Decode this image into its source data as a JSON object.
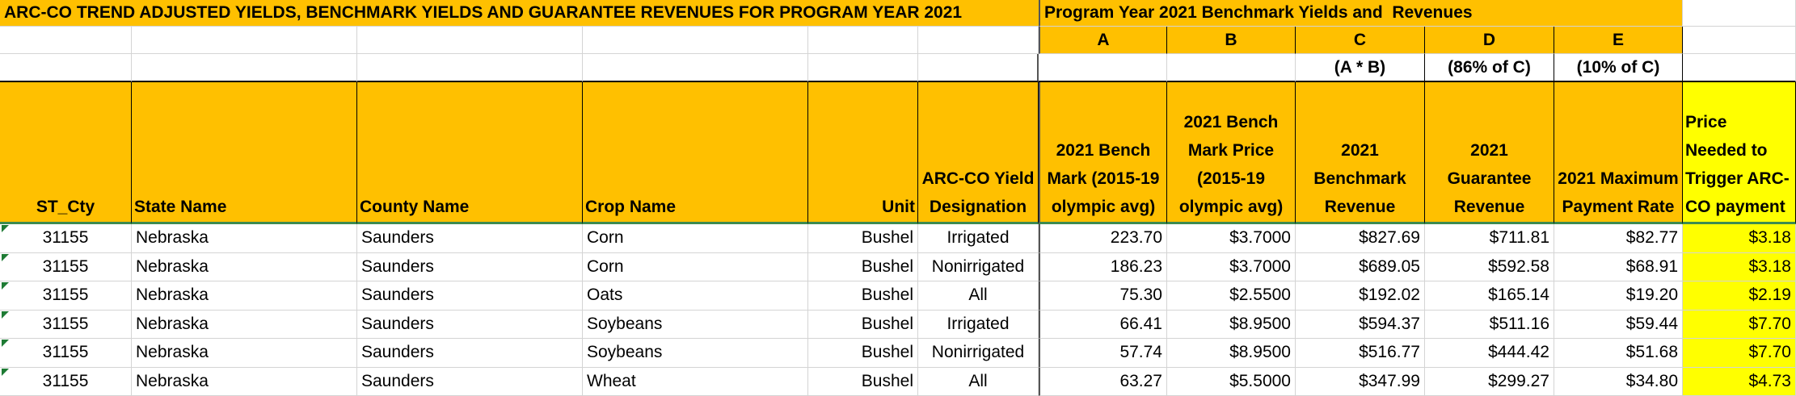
{
  "title": "ARC-CO TREND ADJUSTED YIELDS, BENCHMARK YIELDS AND GUARANTEE REVENUES FOR PROGRAM YEAR 2021",
  "section_title": "Program Year 2021 Benchmark Yields and  Revenues",
  "column_letters": [
    "A",
    "B",
    "C",
    "D",
    "E"
  ],
  "formulas": [
    "(A * B)",
    "(86% of C)",
    "(10% of C)"
  ],
  "table": {
    "headers": [
      "ST_Cty",
      "State Name",
      "County Name",
      "Crop Name",
      "Unit",
      "ARC-CO Yield Designation",
      "2021 Bench Mark (2015-19 olympic avg)",
      "2021 Bench Mark Price (2015-19 olympic avg)",
      "2021 Benchmark Revenue",
      "2021 Guarantee Revenue",
      "2021 Maximum Payment Rate",
      "Price Needed to Trigger ARC-CO payment"
    ],
    "rows": [
      [
        "31155",
        "Nebraska",
        "Saunders",
        "Corn",
        "Bushel",
        "Irrigated",
        "223.70",
        "$3.7000",
        "$827.69",
        "$711.81",
        "$82.77",
        "$3.18"
      ],
      [
        "31155",
        "Nebraska",
        "Saunders",
        "Corn",
        "Bushel",
        "Nonirrigated",
        "186.23",
        "$3.7000",
        "$689.05",
        "$592.58",
        "$68.91",
        "$3.18"
      ],
      [
        "31155",
        "Nebraska",
        "Saunders",
        "Oats",
        "Bushel",
        "All",
        "75.30",
        "$2.5500",
        "$192.02",
        "$165.14",
        "$19.20",
        "$2.19"
      ],
      [
        "31155",
        "Nebraska",
        "Saunders",
        "Soybeans",
        "Bushel",
        "Irrigated",
        "66.41",
        "$8.9500",
        "$594.37",
        "$511.16",
        "$59.44",
        "$7.70"
      ],
      [
        "31155",
        "Nebraska",
        "Saunders",
        "Soybeans",
        "Bushel",
        "Nonirrigated",
        "57.74",
        "$8.9500",
        "$516.77",
        "$444.42",
        "$51.68",
        "$7.70"
      ],
      [
        "31155",
        "Nebraska",
        "Saunders",
        "Wheat",
        "Bushel",
        "All",
        "63.27",
        "$5.5000",
        "$347.99",
        "$299.27",
        "$34.80",
        "$4.73"
      ]
    ]
  }
}
